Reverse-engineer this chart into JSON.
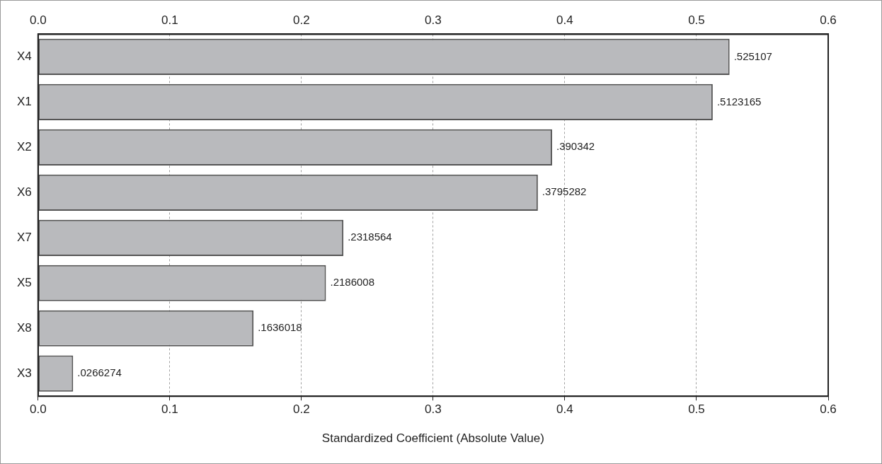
{
  "chart_data": {
    "type": "bar",
    "orientation": "horizontal",
    "xlabel": "Standardized Coefficient (Absolute Value)",
    "categories": [
      "X4",
      "X1",
      "X2",
      "X6",
      "X7",
      "X5",
      "X8",
      "X3"
    ],
    "values": [
      0.525107,
      0.5123165,
      0.390342,
      0.3795282,
      0.2318564,
      0.2186008,
      0.1636018,
      0.0266274
    ],
    "value_labels": [
      ".525107",
      ".5123165",
      ".390342",
      ".3795282",
      ".2318564",
      ".2186008",
      ".1636018",
      ".0266274"
    ],
    "color": "#b9babd",
    "xlim": [
      0,
      0.6
    ],
    "xticks": [
      {
        "value": 0,
        "label": "0.0"
      },
      {
        "value": 0.1,
        "label": "0.1"
      },
      {
        "value": 0.2,
        "label": "0.2"
      },
      {
        "value": 0.3,
        "label": "0.3"
      },
      {
        "value": 0.4,
        "label": "0.4"
      },
      {
        "value": 0.5,
        "label": "0.5"
      },
      {
        "value": 0.6,
        "label": "0.6"
      }
    ],
    "x2lim": [
      0,
      0.6
    ],
    "x2ticks": [
      {
        "value": 0,
        "label": "0.0"
      },
      {
        "value": 0.1,
        "label": "0.1"
      },
      {
        "value": 0.2,
        "label": "0.2"
      },
      {
        "value": 0.3,
        "label": "0.3"
      },
      {
        "value": 0.4,
        "label": "0.4"
      },
      {
        "value": 0.5,
        "label": "0.5"
      },
      {
        "value": 0.6,
        "label": "0.6"
      }
    ],
    "grid": "x",
    "legend": false
  }
}
